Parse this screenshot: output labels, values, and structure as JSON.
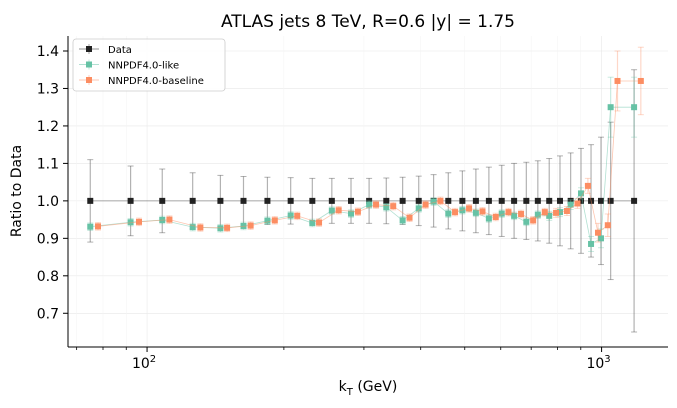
{
  "chart_data": {
    "type": "scatter",
    "title": "ATLAS jets 8 TeV, R=0.6 |y| = 1.75",
    "xlabel": "k",
    "xlabel_sub": "T",
    "xlabel_unit": " (GeV)",
    "ylabel": "Ratio to Data",
    "xscale": "log",
    "xlim": [
      67,
      1400
    ],
    "ylim": [
      0.61,
      1.44
    ],
    "yticks": [
      0.7,
      0.8,
      0.9,
      1.0,
      1.1,
      1.2,
      1.3,
      1.4
    ],
    "ytick_labels": [
      "0.7",
      "0.8",
      "0.9",
      "1.0",
      "1.1",
      "1.2",
      "1.3",
      "1.4"
    ],
    "xticks": [
      100,
      1000
    ],
    "xtick_base": "10",
    "xtick_exps": [
      "2",
      "3"
    ],
    "grid": true,
    "legend_position": "top-left",
    "series": [
      {
        "name": "Data",
        "color": "#222222",
        "x": [
          75,
          92,
          108,
          126,
          145,
          163,
          184,
          207,
          231,
          255,
          281,
          308,
          336,
          365,
          396,
          427,
          460,
          494,
          529,
          565,
          603,
          642,
          683,
          724,
          767,
          810,
          855,
          901,
          948,
          997,
          1047,
          1179
        ],
        "y": [
          1,
          1,
          1,
          1,
          1,
          1,
          1,
          1,
          1,
          1,
          1,
          1,
          1,
          1,
          1,
          1,
          1,
          1,
          1,
          1,
          1,
          1,
          1,
          1,
          1,
          1,
          1,
          1,
          1,
          1,
          1,
          1
        ],
        "err": [
          0.11,
          0.093,
          0.085,
          0.075,
          0.068,
          0.065,
          0.063,
          0.062,
          0.06,
          0.06,
          0.06,
          0.06,
          0.061,
          0.063,
          0.066,
          0.07,
          0.075,
          0.08,
          0.085,
          0.09,
          0.095,
          0.1,
          0.103,
          0.107,
          0.113,
          0.12,
          0.128,
          0.14,
          0.15,
          0.17,
          0.21,
          0.35
        ]
      },
      {
        "name": "NNPDF4.0-like",
        "color": "#66c2a5",
        "x": [
          75,
          92,
          108,
          126,
          145,
          163,
          184,
          207,
          231,
          255,
          281,
          308,
          336,
          365,
          396,
          427,
          460,
          494,
          529,
          565,
          603,
          642,
          683,
          724,
          767,
          810,
          855,
          901,
          948,
          997,
          1047,
          1179
        ],
        "y": [
          0.931,
          0.943,
          0.949,
          0.93,
          0.927,
          0.933,
          0.947,
          0.961,
          0.941,
          0.974,
          0.966,
          0.99,
          0.983,
          0.948,
          0.98,
          0.998,
          0.966,
          0.975,
          0.968,
          0.953,
          0.966,
          0.96,
          0.944,
          0.963,
          0.96,
          0.97,
          0.99,
          1.02,
          0.885,
          0.9,
          1.25,
          1.25
        ],
        "err": [
          0.01,
          0.01,
          0.01,
          0.01,
          0.01,
          0.01,
          0.01,
          0.01,
          0.01,
          0.01,
          0.01,
          0.01,
          0.01,
          0.01,
          0.01,
          0.01,
          0.01,
          0.01,
          0.01,
          0.01,
          0.01,
          0.01,
          0.01,
          0.01,
          0.012,
          0.012,
          0.013,
          0.015,
          0.02,
          0.025,
          0.08,
          0.08
        ]
      },
      {
        "name": "NNPDF4.0-baseline",
        "color": "#fc8d62",
        "x": [
          78,
          96,
          112,
          131,
          150,
          169,
          191,
          214,
          239,
          264,
          291,
          319,
          348,
          378,
          410,
          442,
          476,
          511,
          547,
          585,
          624,
          665,
          707,
          750,
          794,
          839,
          885,
          933,
          982,
          1032,
          1084,
          1220
        ],
        "y": [
          0.932,
          0.944,
          0.95,
          0.929,
          0.928,
          0.934,
          0.948,
          0.96,
          0.942,
          0.975,
          0.971,
          0.99,
          0.986,
          0.955,
          0.99,
          1.0,
          0.97,
          0.98,
          0.972,
          0.957,
          0.97,
          0.965,
          0.948,
          0.97,
          0.968,
          0.973,
          0.993,
          1.04,
          0.915,
          0.935,
          1.32,
          1.32
        ],
        "err": [
          0.01,
          0.01,
          0.01,
          0.01,
          0.01,
          0.01,
          0.01,
          0.01,
          0.01,
          0.01,
          0.01,
          0.01,
          0.01,
          0.01,
          0.01,
          0.01,
          0.01,
          0.01,
          0.01,
          0.01,
          0.01,
          0.01,
          0.01,
          0.01,
          0.012,
          0.012,
          0.013,
          0.02,
          0.025,
          0.03,
          0.08,
          0.09
        ]
      }
    ]
  }
}
